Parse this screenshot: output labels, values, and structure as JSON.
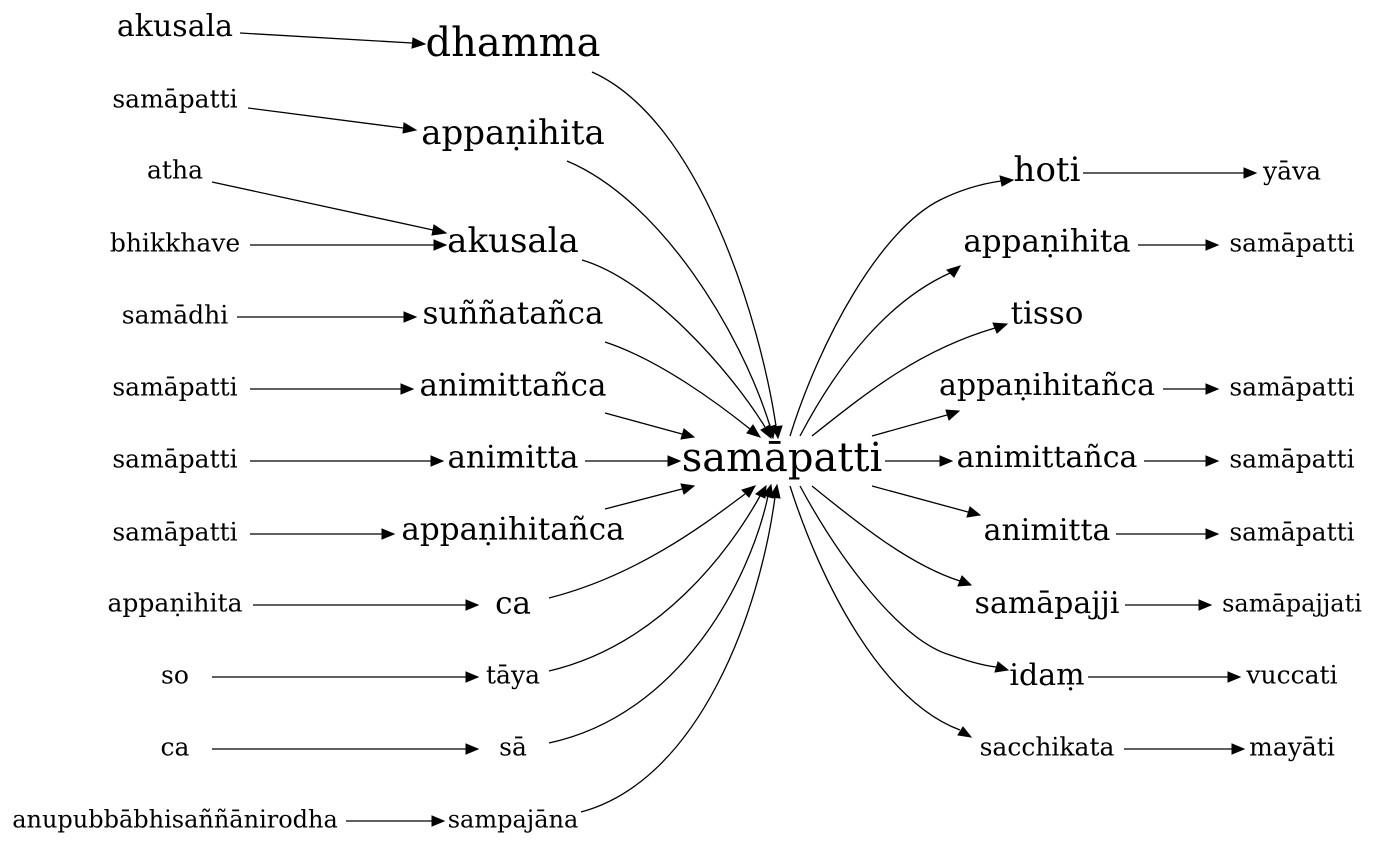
{
  "graph": {
    "center": "samāpatti",
    "predecessors": [
      {
        "word": "dhamma",
        "preceded_by": "akusala"
      },
      {
        "word": "appaṇihita",
        "preceded_by": "samāpatti"
      },
      {
        "word": "akusala",
        "preceded_by": [
          "atha",
          "bhikkhave"
        ]
      },
      {
        "word": "suññatañca",
        "preceded_by": "samādhi"
      },
      {
        "word": "animittañca",
        "preceded_by": "samāpatti"
      },
      {
        "word": "animitta",
        "preceded_by": "samāpatti"
      },
      {
        "word": "appaṇihitañca",
        "preceded_by": "samāpatti"
      },
      {
        "word": "ca",
        "preceded_by": "appaṇihita"
      },
      {
        "word": "tāya",
        "preceded_by": "so"
      },
      {
        "word": "sā",
        "preceded_by": "ca"
      },
      {
        "word": "sampajāna",
        "preceded_by": "anupubbābhisaññānirodha"
      }
    ],
    "successors": [
      {
        "word": "hoti",
        "followed_by": "yāva"
      },
      {
        "word": "appaṇihita",
        "followed_by": "samāpatti"
      },
      {
        "word": "tisso",
        "followed_by": null
      },
      {
        "word": "appaṇihitañca",
        "followed_by": "samāpatti"
      },
      {
        "word": "animittañca",
        "followed_by": "samāpatti"
      },
      {
        "word": "animitta",
        "followed_by": "samāpatti"
      },
      {
        "word": "samāpajji",
        "followed_by": "samāpajjati"
      },
      {
        "word": "idaṃ",
        "followed_by": "vuccati"
      },
      {
        "word": "sacchikata",
        "followed_by": "mayāti"
      }
    ]
  },
  "labels": {
    "center": "samāpatti",
    "l1": [
      "dhamma",
      "appaṇihita",
      "akusala",
      "suññatañca",
      "animittañca",
      "animitta",
      "appaṇihitañca",
      "ca",
      "tāya",
      "sā",
      "sampajāna"
    ],
    "l2": [
      "akusala",
      "samāpatti",
      "atha",
      "bhikkhave",
      "samādhi",
      "samāpatti",
      "samāpatti",
      "samāpatti",
      "appaṇihita",
      "so",
      "ca",
      "anupubbābhisaññānirodha"
    ],
    "r1": [
      "hoti",
      "appaṇihita",
      "tisso",
      "appaṇihitañca",
      "animittañca",
      "animitta",
      "samāpajji",
      "idaṃ",
      "sacchikata"
    ],
    "r2": [
      "yāva",
      "samāpatti",
      "samāpatti",
      "samāpatti",
      "samāpatti",
      "samāpajjati",
      "vuccati",
      "mayāti"
    ]
  }
}
